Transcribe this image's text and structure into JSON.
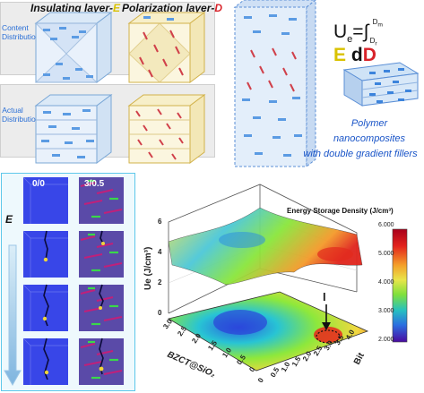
{
  "top": {
    "header_insulating": {
      "text": "Insulating layer-",
      "letter": "E"
    },
    "header_polarization": {
      "text": "Polarization layer-",
      "letter": "D"
    },
    "side_label_content": "Content Distribution",
    "side_label_actual": "Actual Distribution",
    "equation": {
      "lhs": "U",
      "sub": "e",
      "eq": "=",
      "upper": "D",
      "upper_sub": "m",
      "lower": "D",
      "lower_sub": "r",
      "E": "E",
      "d": "d",
      "D": "D"
    },
    "caption_lines": [
      "Polymer",
      "nanocomposites",
      "with double gradient fillers"
    ]
  },
  "sim": {
    "col1_label": "0/0",
    "col2_label": "3/0.5",
    "field_label": "E",
    "frames": 4
  },
  "plot": {
    "title": "Energy Storage Density (J/cm³)",
    "z_axis_label": "Ue (J/cm³)",
    "z_ticks": [
      "0",
      "2",
      "4",
      "6"
    ],
    "x_axis_label": "BZCT@SiO₂",
    "x_ticks": [
      "3.0",
      "2.5",
      "2.0",
      "1.5",
      "1.0",
      "0.5",
      "0"
    ],
    "y_axis_label": "Bit",
    "y_ticks": [
      "0",
      "0.5",
      "1.0",
      "1.5",
      "2.0",
      "2.5",
      "3.0",
      "3.5",
      "4.0"
    ],
    "marker_label": "I",
    "colorbar_ticks": [
      "6.000",
      "5.000",
      "4.000",
      "3.000",
      "2.000"
    ],
    "colors": {
      "high": "#d81b1b",
      "mid_high": "#f0d040",
      "mid": "#8ee83b",
      "mid_low": "#22b5c8",
      "low": "#2a1a9e"
    }
  }
}
